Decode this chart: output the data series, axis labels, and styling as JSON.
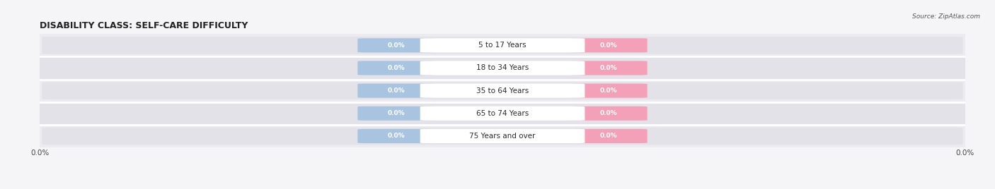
{
  "title": "DISABILITY CLASS: SELF-CARE DIFFICULTY",
  "source_text": "Source: ZipAtlas.com",
  "age_groups": [
    "5 to 17 Years",
    "18 to 34 Years",
    "35 to 64 Years",
    "65 to 74 Years",
    "75 Years and over"
  ],
  "male_values": [
    0.0,
    0.0,
    0.0,
    0.0,
    0.0
  ],
  "female_values": [
    0.0,
    0.0,
    0.0,
    0.0,
    0.0
  ],
  "male_color": "#a8c4e0",
  "female_color": "#f4a0b8",
  "male_legend_color": "#7bafd4",
  "female_legend_color": "#f06080",
  "bar_bg_color": "#e2e2e8",
  "row_separator_color": "#ffffff",
  "xlim": [
    -1.0,
    1.0
  ],
  "bar_height": 0.72,
  "title_fontsize": 9,
  "label_fontsize": 6.5,
  "tick_fontsize": 7.5,
  "background_color": "#f5f5f7"
}
